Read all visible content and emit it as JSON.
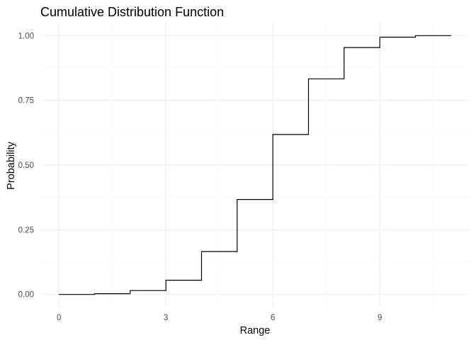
{
  "chart_data": {
    "type": "line",
    "step": true,
    "title": "Cumulative Distribution Function",
    "xlabel": "Range",
    "ylabel": "Probability",
    "xlim": [
      -0.5,
      11.5
    ],
    "ylim": [
      -0.05,
      1.05
    ],
    "x_ticks": [
      0,
      3,
      6,
      9
    ],
    "x_tick_labels": [
      "0",
      "3",
      "6",
      "9"
    ],
    "x_minor_ticks": [
      1.5,
      4.5,
      7.5,
      10.5
    ],
    "y_ticks": [
      0,
      0.25,
      0.5,
      0.75,
      1
    ],
    "y_tick_labels": [
      "0.00",
      "0.25",
      "0.50",
      "0.75",
      "1.00"
    ],
    "y_minor_ticks": [
      0.125,
      0.375,
      0.625,
      0.875
    ],
    "grid": true,
    "series": [
      {
        "x": [
          0,
          1,
          2,
          3,
          4,
          5,
          6,
          7,
          8,
          9,
          10,
          11
        ],
        "y": [
          0.0,
          0.003,
          0.015,
          0.055,
          0.166,
          0.367,
          0.618,
          0.833,
          0.954,
          0.994,
          1.0,
          1.0
        ],
        "color": "#000000"
      }
    ]
  }
}
